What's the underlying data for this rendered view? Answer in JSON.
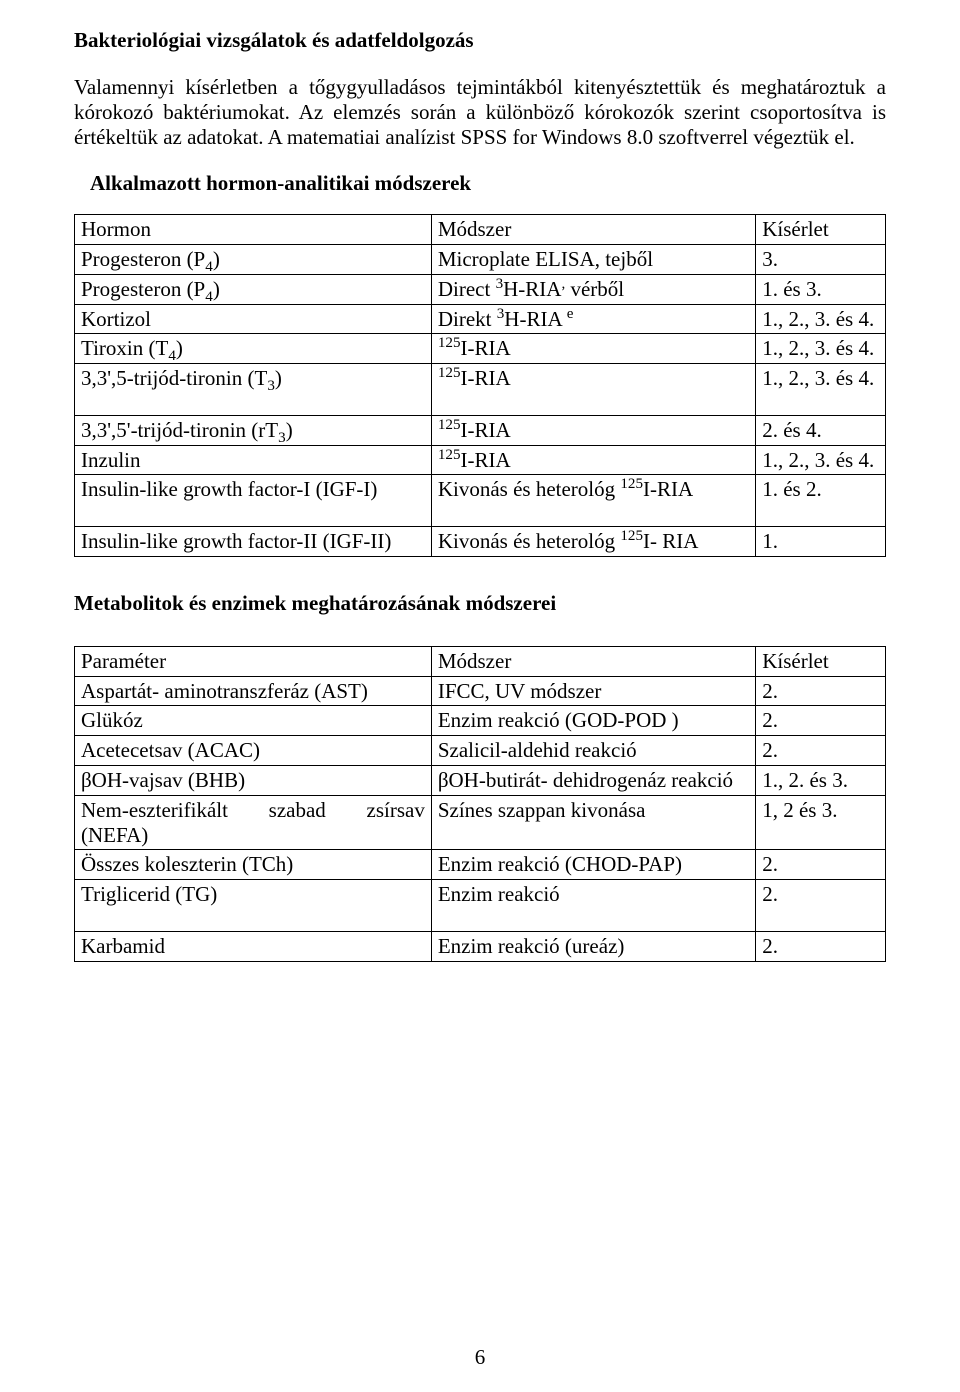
{
  "section1": {
    "title": "Bakteriológiai vizsgálatok és adatfeldolgozás",
    "paragraph": "Valamennyi kísérletben a tőgygyulladásos tejmintákból kitenyésztettük és meghatároztuk a kórokozó baktériumokat. Az elemzés során a különböző kórokozók szerint csoportosítva is értékeltük az adatokat. A matematiai analízist SPSS for Windows 8.0 szoftverrel végeztük el.",
    "subheading": "Alkalmazott hormon-analitikai módszerek"
  },
  "table1": {
    "headers": [
      "Hormon",
      "Módszer",
      "Kísérlet"
    ],
    "rows": [
      {
        "c0": "Progesteron (P<sub>4</sub>)",
        "c1": "Microplate ELISA, tejből",
        "c2": "3."
      },
      {
        "c0": "Progesteron (P<sub>4</sub>)",
        "c1": "Direct  <sup>3</sup>H-RIA<sup>,</sup> vérből",
        "c2": "1. és 3."
      },
      {
        "c0": "Kortizol",
        "c1": "Direkt  <sup>3</sup>H-RIA <sup>e</sup>",
        "c2": "1., 2., 3. és 4."
      },
      {
        "c0": "Tiroxin (T<sub>4</sub>)",
        "c1": "<sup>125</sup>I-RIA",
        "c2": "1., 2., 3. és 4."
      },
      {
        "c0": "3,3',5-trijód-tironin (T<sub>3</sub>)",
        "c1": "<sup>125</sup>I-RIA",
        "c2": "1., 2., 3. és 4.",
        "tall": true
      },
      {
        "c0": "3,3',5'-trijód-tironin (rT<sub>3</sub>)",
        "c1": "<sup>125</sup>I-RIA",
        "c2": "2. és 4."
      },
      {
        "c0": "Inzulin",
        "c1": "<sup>125</sup>I-RIA",
        "c2": "1., 2., 3. és 4."
      },
      {
        "c0": "Insulin-like growth factor-I (IGF-I)",
        "c1": "Kivonás és heterológ <sup>125</sup>I-RIA",
        "c2": "1. és 2.",
        "tall": true
      },
      {
        "c0": "Insulin-like growth factor-II (IGF-II)",
        "c1": "Kivonás és heterológ <sup>125</sup>I- RIA",
        "c2": "1."
      }
    ]
  },
  "section2": {
    "title": "Metabolitok és enzimek meghatározásának módszerei"
  },
  "table2": {
    "headers": [
      "Paraméter",
      "Módszer",
      "Kísérlet"
    ],
    "rows": [
      {
        "c0": "Aspartát- aminotranszferáz (AST)",
        "c1": "IFCC, UV módszer",
        "c2": "2."
      },
      {
        "c0": "Glükóz",
        "c1": "Enzim reakció (GOD-POD )",
        "c2": "2."
      },
      {
        "c0": "Acetecetsav (ACAC)",
        "c1": "Szalicil-aldehid reakció",
        "c2": "2."
      },
      {
        "c0": "βOH-vajsav (BHB)",
        "c1": "βOH-butirát- dehidrogenáz reakció",
        "c2": "1., 2. és 3."
      },
      {
        "c0": "Nem-eszterifikált szabad zsírsav (NEFA)",
        "c1": "Színes szappan kivonása",
        "c2": "1, 2 és 3.",
        "c0justify": true
      },
      {
        "c0": "Összes koleszterin (TCh)",
        "c1": "Enzim reakció  (CHOD-PAP)",
        "c2": "2."
      },
      {
        "c0": "Triglicerid (TG)",
        "c1": "Enzim reakció",
        "c2": "2.",
        "tall": true
      },
      {
        "c0": "Karbamid",
        "c1": "Enzim reakció (ureáz)",
        "c2": "2."
      }
    ]
  },
  "pageNumber": "6"
}
